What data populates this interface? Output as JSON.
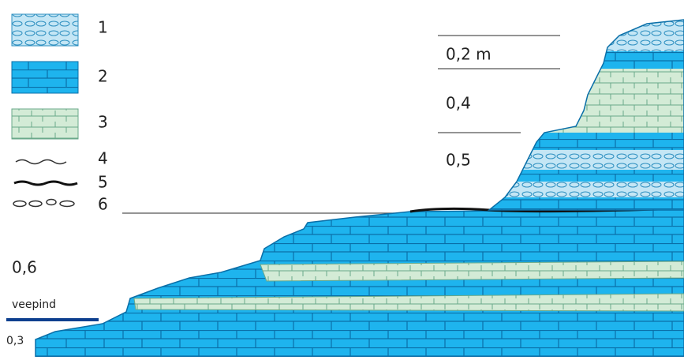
{
  "legend": [
    {
      "number": "1"
    },
    {
      "number": "2"
    },
    {
      "number": "3"
    },
    {
      "number": "4"
    },
    {
      "number": "5"
    },
    {
      "number": "6"
    }
  ],
  "thicknesses": [
    "0,2 m",
    "0,4",
    "0,5",
    "0,6",
    "0,3"
  ],
  "water_label": "veepind"
}
